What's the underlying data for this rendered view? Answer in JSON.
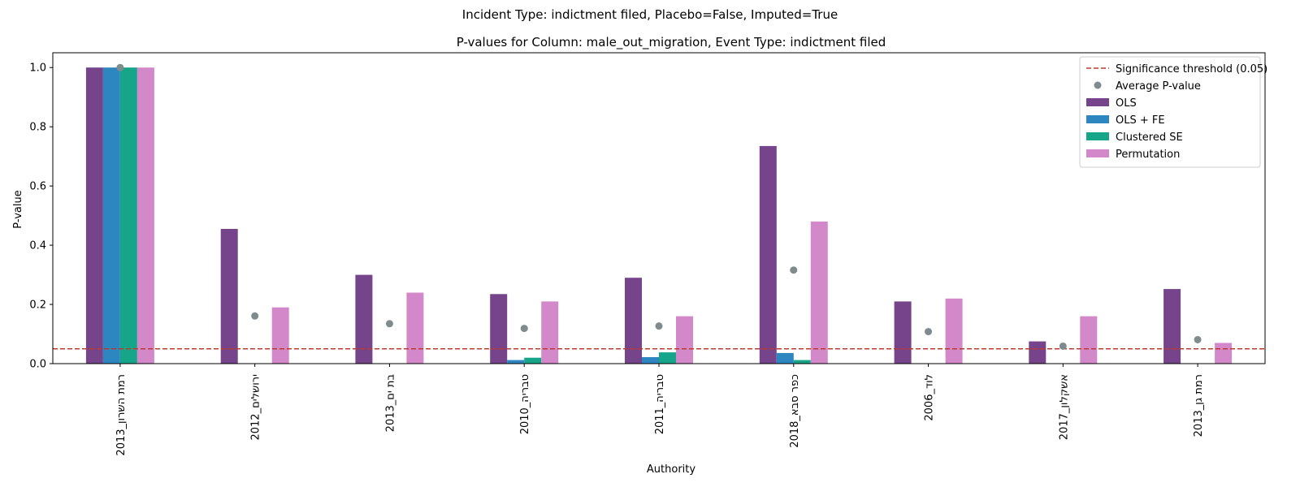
{
  "figure": {
    "suptitle": "Incident Type: indictment filed, Placebo=False, Imputed=True"
  },
  "chart_data": {
    "type": "bar",
    "title": "P-values for Column: male_out_migration, Event Type: indictment filed",
    "xlabel": "Authority",
    "ylabel": "P-value",
    "ylim": [
      0,
      1.05
    ],
    "yticks": [
      "0.0",
      "0.2",
      "0.4",
      "0.6",
      "0.8",
      "1.0"
    ],
    "categories": [
      "רמת השרון_2013",
      "ירושלים_2012",
      "בת ים_2013",
      "טבריה_2010",
      "טבריה_2011",
      "כפר סבא_2018",
      "לוד_2006",
      "אשקלון_2017",
      "רמת גן_2013"
    ],
    "series": [
      {
        "name": "OLS",
        "color": "#76448a",
        "values": [
          1.0,
          0.455,
          0.3,
          0.235,
          0.29,
          0.735,
          0.21,
          0.075,
          0.252
        ]
      },
      {
        "name": "OLS + FE",
        "color": "#2e86c1",
        "values": [
          1.0,
          0.0,
          0.0,
          0.012,
          0.022,
          0.036,
          0.0,
          0.0,
          0.0
        ]
      },
      {
        "name": "Clustered SE",
        "color": "#17a589",
        "values": [
          1.0,
          0.0,
          0.0,
          0.02,
          0.038,
          0.012,
          0.0,
          0.0,
          0.0
        ]
      },
      {
        "name": "Permutation",
        "color": "#d389c9",
        "values": [
          1.0,
          0.19,
          0.24,
          0.21,
          0.16,
          0.48,
          0.22,
          0.16,
          0.07
        ]
      }
    ],
    "average": {
      "name": "Average P-value",
      "color": "#7f8c8d",
      "values": [
        1.0,
        0.161,
        0.135,
        0.119,
        0.127,
        0.316,
        0.108,
        0.059,
        0.081
      ]
    },
    "threshold": {
      "name": "Significance threshold (0.05)",
      "value": 0.05,
      "color": "#c0392b"
    },
    "legend_position": "top-right",
    "grid": false
  }
}
